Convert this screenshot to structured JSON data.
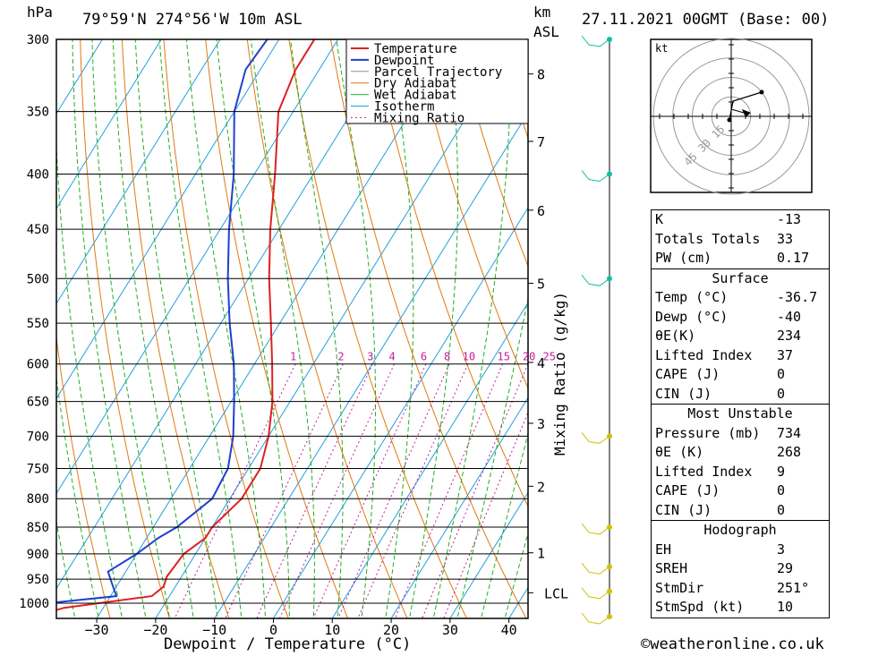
{
  "header": {
    "hpa_label": "hPa",
    "location": "79°59'N  274°56'W  10m  ASL",
    "km_label": "km",
    "asl_label": "ASL",
    "datetime": "27.11.2021  00GMT  (Base: 00)"
  },
  "chart_data": {
    "type": "skew-t",
    "xlabel": "Dewpoint / Temperature (°C)",
    "ylabel_right": "Mixing Ratio (g/kg)",
    "y_axis_label": "hPa",
    "pressure_ticks": [
      300,
      350,
      400,
      450,
      500,
      550,
      600,
      650,
      700,
      750,
      800,
      850,
      900,
      950,
      1000
    ],
    "temperature_ticks": [
      -30,
      -20,
      -10,
      0,
      10,
      20,
      30,
      40
    ],
    "km_ticks": [
      {
        "label": "8",
        "p": 323
      },
      {
        "label": "7",
        "p": 373
      },
      {
        "label": "6",
        "p": 432
      },
      {
        "label": "5",
        "p": 505
      },
      {
        "label": "4",
        "p": 598
      },
      {
        "label": "3",
        "p": 681
      },
      {
        "label": "2",
        "p": 779
      },
      {
        "label": "1",
        "p": 898
      },
      {
        "label": "LCL",
        "p": 978
      }
    ],
    "mixing_ratio_labels": [
      "1",
      "2",
      "3",
      "4",
      "6",
      "8",
      "10",
      "15",
      "20",
      "25"
    ],
    "mixing_ratio_values": [
      1,
      2,
      3,
      4,
      6,
      8,
      10,
      15,
      20,
      25
    ],
    "legend": [
      "Temperature",
      "Dewpoint",
      "Parcel Trajectory",
      "Dry Adiabat",
      "Wet Adiabat",
      "Isotherm",
      "Mixing Ratio"
    ],
    "colors": {
      "temperature": "#e02020",
      "dewpoint": "#2040d0",
      "parcel": "#909090",
      "dry_adiabat": "#e07a10",
      "wet_adiabat": "#20b020",
      "isotherm": "#20a0e0",
      "mixing_ratio": "#c0209c",
      "wind": "#10c0a0",
      "wind_low": "#d0c000"
    },
    "temperature_profile": [
      {
        "p": 1025,
        "t": -40
      },
      {
        "p": 1010,
        "t": -36.7
      },
      {
        "p": 985,
        "t": -23
      },
      {
        "p": 965,
        "t": -22
      },
      {
        "p": 945,
        "t": -22.5
      },
      {
        "p": 900,
        "t": -22
      },
      {
        "p": 870,
        "t": -20
      },
      {
        "p": 850,
        "t": -20
      },
      {
        "p": 800,
        "t": -18
      },
      {
        "p": 750,
        "t": -18
      },
      {
        "p": 700,
        "t": -20
      },
      {
        "p": 650,
        "t": -23
      },
      {
        "p": 600,
        "t": -27
      },
      {
        "p": 550,
        "t": -31.5
      },
      {
        "p": 500,
        "t": -36.5
      },
      {
        "p": 450,
        "t": -41.5
      },
      {
        "p": 400,
        "t": -46.5
      },
      {
        "p": 350,
        "t": -52.5
      },
      {
        "p": 320,
        "t": -54
      },
      {
        "p": 300,
        "t": -54
      }
    ],
    "dewpoint_profile": [
      {
        "p": 1005,
        "t": -64
      },
      {
        "p": 1000,
        "t": -40
      },
      {
        "p": 985,
        "t": -29
      },
      {
        "p": 960,
        "t": -31
      },
      {
        "p": 935,
        "t": -33
      },
      {
        "p": 900,
        "t": -30
      },
      {
        "p": 870,
        "t": -28
      },
      {
        "p": 850,
        "t": -26
      },
      {
        "p": 800,
        "t": -23
      },
      {
        "p": 750,
        "t": -23.5
      },
      {
        "p": 700,
        "t": -26
      },
      {
        "p": 650,
        "t": -29.5
      },
      {
        "p": 600,
        "t": -33.5
      },
      {
        "p": 550,
        "t": -38.5
      },
      {
        "p": 500,
        "t": -43.5
      },
      {
        "p": 450,
        "t": -48.5
      },
      {
        "p": 400,
        "t": -53.5
      },
      {
        "p": 350,
        "t": -60
      },
      {
        "p": 320,
        "t": -62.5
      },
      {
        "p": 300,
        "t": -62
      }
    ],
    "wind_pressures": [
      300,
      400,
      500,
      700,
      850,
      925,
      975,
      1000
    ]
  },
  "hodograph": {
    "unit_label": "kt",
    "ring_labels": [
      "15",
      "30",
      "45"
    ]
  },
  "indices": {
    "top": [
      {
        "label": "K",
        "value": "-13"
      },
      {
        "label": "Totals Totals",
        "value": "33"
      },
      {
        "label": "PW (cm)",
        "value": "0.17"
      }
    ],
    "surface": {
      "title": "Surface",
      "rows": [
        {
          "label": "Temp (°C)",
          "value": "-36.7"
        },
        {
          "label": "Dewp (°C)",
          "value": "-40"
        },
        {
          "label": "θE(K)",
          "value": "234"
        },
        {
          "label": "Lifted Index",
          "value": "37"
        },
        {
          "label": "CAPE (J)",
          "value": "0"
        },
        {
          "label": "CIN (J)",
          "value": "0"
        }
      ]
    },
    "most_unstable": {
      "title": "Most Unstable",
      "rows": [
        {
          "label": "Pressure (mb)",
          "value": "734"
        },
        {
          "label": "θE (K)",
          "value": "268"
        },
        {
          "label": "Lifted Index",
          "value": "9"
        },
        {
          "label": "CAPE (J)",
          "value": "0"
        },
        {
          "label": "CIN (J)",
          "value": "0"
        }
      ]
    },
    "hodograph": {
      "title": "Hodograph",
      "rows": [
        {
          "label": "EH",
          "value": "3"
        },
        {
          "label": "SREH",
          "value": "29"
        },
        {
          "label": "StmDir",
          "value": "251°"
        },
        {
          "label": "StmSpd (kt)",
          "value": "10"
        }
      ]
    }
  },
  "footer": {
    "copyright": "©weatheronline.co.uk"
  }
}
